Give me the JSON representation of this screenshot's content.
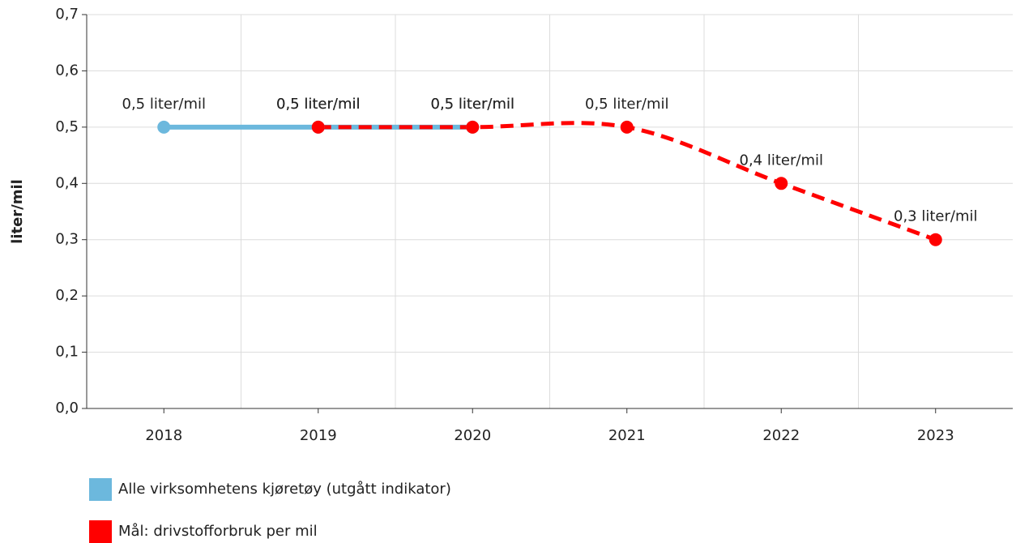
{
  "chart_data": {
    "type": "line",
    "ylabel": "liter/mil",
    "categories": [
      "2018",
      "2019",
      "2020",
      "2021",
      "2022",
      "2023"
    ],
    "series": [
      {
        "name": "Alle virksomhetens kjøretøy (utgått indikator)",
        "color": "#6cb8dd",
        "dashed": false,
        "values": [
          0.5,
          0.5,
          0.5,
          null,
          null,
          null
        ],
        "value_labels": [
          "0,5 liter/mil",
          "0,5 liter/mil",
          "0,5 liter/mil",
          null,
          null,
          null
        ]
      },
      {
        "name": "Mål: drivstofforbruk per mil",
        "color": "#ff0000",
        "dashed": true,
        "values": [
          null,
          0.5,
          0.5,
          0.5,
          0.4,
          0.3
        ],
        "value_labels": [
          null,
          "0,5 liter/mil",
          "0,5 liter/mil",
          "0,5 liter/mil",
          "0,4 liter/mil",
          "0,3 liter/mil"
        ]
      }
    ],
    "ylim": [
      0,
      0.7
    ],
    "yticks": [
      {
        "value": 0,
        "label": "0,0"
      },
      {
        "value": 0.1,
        "label": "0,1"
      },
      {
        "value": 0.2,
        "label": "0,2"
      },
      {
        "value": 0.3,
        "label": "0,3"
      },
      {
        "value": 0.4,
        "label": "0,4"
      },
      {
        "value": 0.5,
        "label": "0,5"
      },
      {
        "value": 0.6,
        "label": "0,6"
      },
      {
        "value": 0.7,
        "label": "0,7"
      }
    ],
    "grid": true,
    "legend": "bottom-left"
  }
}
